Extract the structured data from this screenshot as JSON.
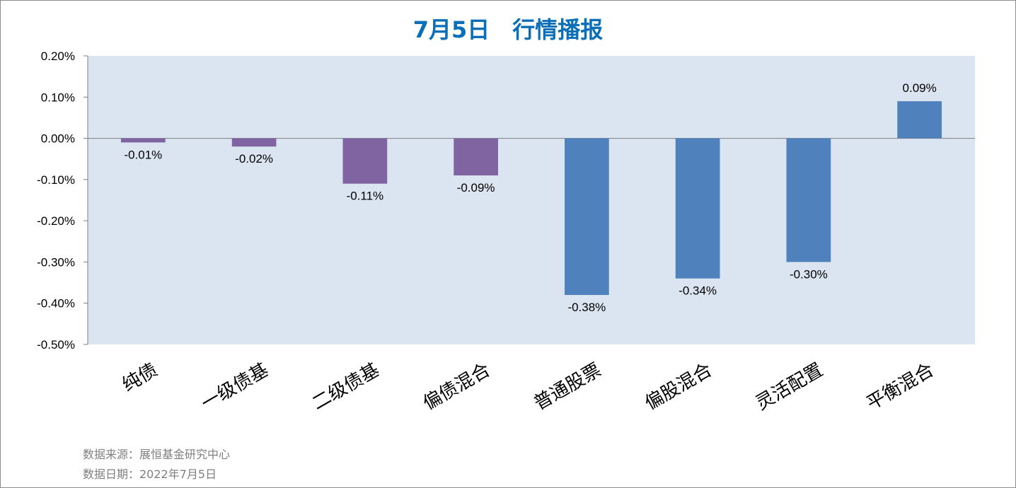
{
  "chart_data": {
    "type": "bar",
    "title": "7月5日　行情播报",
    "categories": [
      "纯债",
      "一级债基",
      "二级债基",
      "偏债混合",
      "普通股票",
      "偏股混合",
      "灵活配置",
      "平衡混合"
    ],
    "values": [
      -0.01,
      -0.02,
      -0.11,
      -0.09,
      -0.38,
      -0.34,
      -0.3,
      0.09
    ],
    "data_labels": [
      "-0.01%",
      "-0.02%",
      "-0.11%",
      "-0.09%",
      "-0.38%",
      "-0.34%",
      "-0.30%",
      "0.09%"
    ],
    "y_ticks": [
      0.2,
      0.1,
      0.0,
      -0.1,
      -0.2,
      -0.3,
      -0.4,
      -0.5
    ],
    "y_tick_labels": [
      "0.20%",
      "0.10%",
      "0.00%",
      "-0.10%",
      "-0.20%",
      "-0.30%",
      "-0.40%",
      "-0.50%"
    ],
    "ylim": [
      -0.5,
      0.2
    ],
    "xlabel": "",
    "ylabel": "",
    "grid": false,
    "legend": "none",
    "colors": {
      "plot_background": "#dbe5f1",
      "bond_bars": "#8064a2",
      "equity_bars": "#4f81bd",
      "title": "#0b6fb8",
      "footer": "#7f7f7f"
    },
    "bar_color_groups": [
      "bond",
      "bond",
      "bond",
      "bond",
      "equity",
      "equity",
      "equity",
      "equity"
    ]
  },
  "footer": {
    "source": "数据来源：展恒基金研究中心",
    "date": "数据日期：2022年7月5日"
  }
}
